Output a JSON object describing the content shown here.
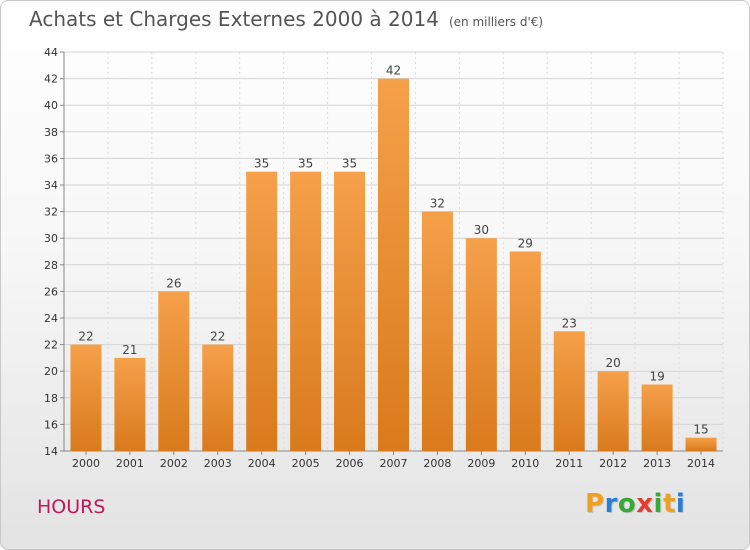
{
  "title": "Achats et Charges Externes 2000 à 2014",
  "subtitle": "(en milliers d'€)",
  "commune": "HOURS",
  "logo": {
    "letters": [
      "P",
      "r",
      "o",
      "x",
      "i",
      "t",
      "i"
    ],
    "colors": [
      "#f0a020",
      "#2a7fd4",
      "#39a935",
      "#e83a2e",
      "#39a935",
      "#f0a020",
      "#2a7fd4"
    ]
  },
  "chart_data": {
    "type": "bar",
    "categories": [
      "2000",
      "2001",
      "2002",
      "2003",
      "2004",
      "2005",
      "2006",
      "2007",
      "2008",
      "2009",
      "2010",
      "2011",
      "2012",
      "2013",
      "2014"
    ],
    "values": [
      22,
      21,
      26,
      22,
      35,
      35,
      35,
      42,
      32,
      30,
      29,
      23,
      20,
      19,
      15
    ],
    "ylim": [
      14,
      44
    ],
    "yticks": [
      14,
      16,
      18,
      20,
      22,
      24,
      26,
      28,
      30,
      32,
      34,
      36,
      38,
      40,
      42,
      44
    ],
    "grid": true,
    "bar_color_top": "#f5a04a",
    "bar_color_bottom": "#d97a1c"
  }
}
